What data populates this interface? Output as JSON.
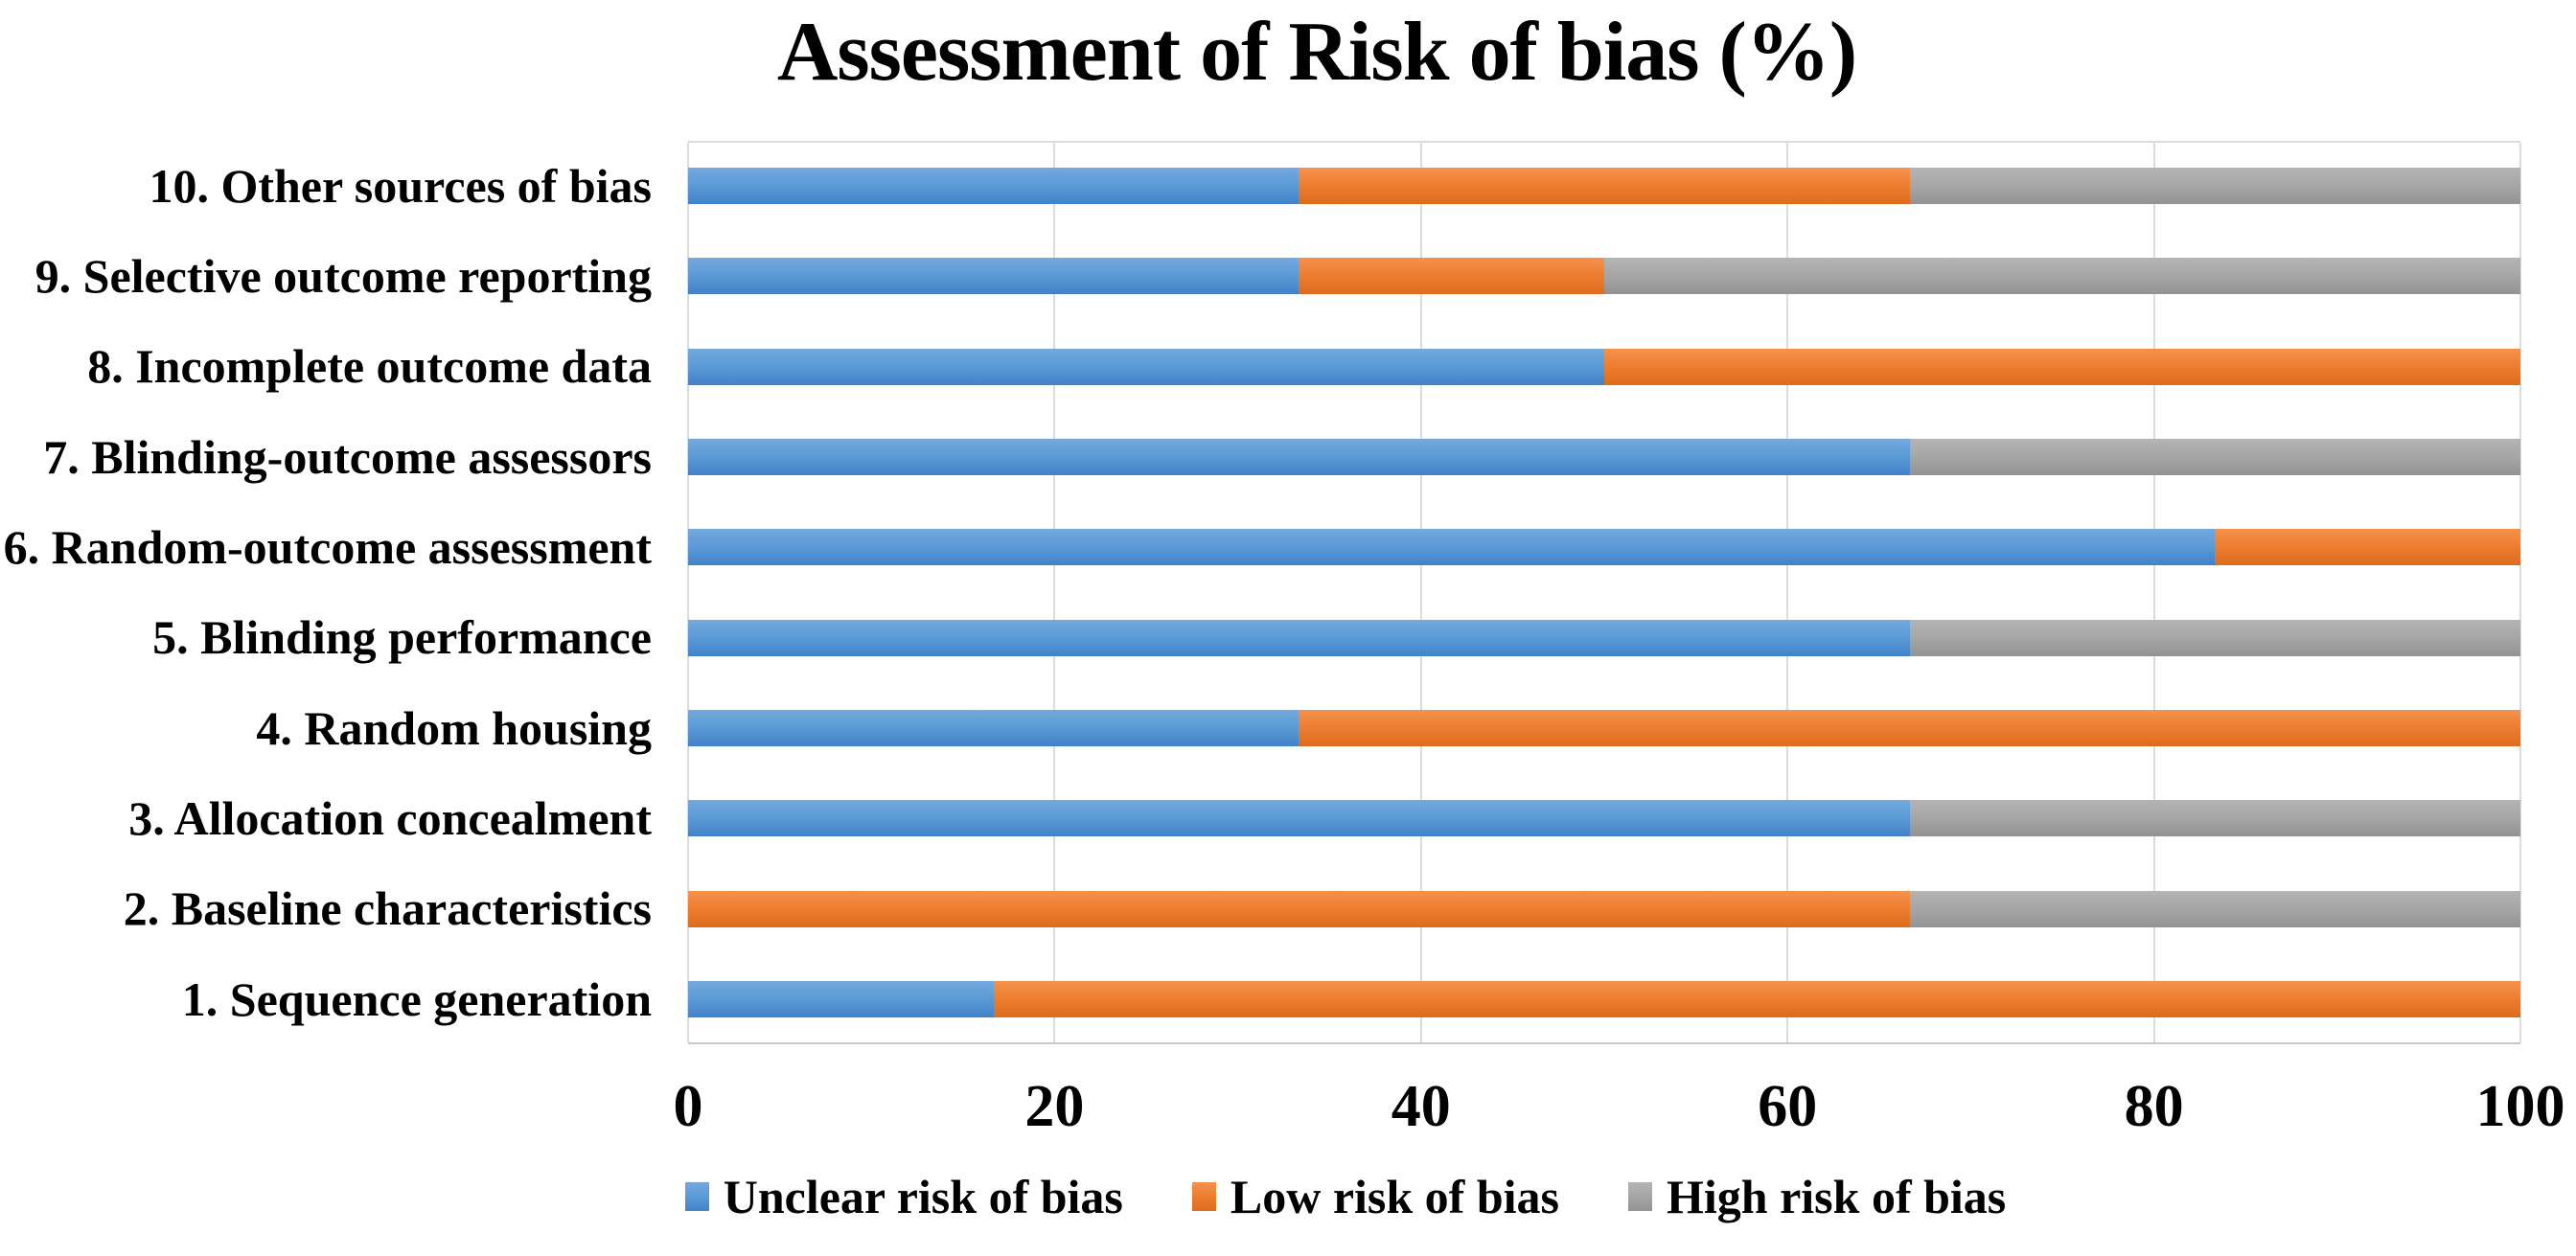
{
  "chart_data": {
    "type": "bar",
    "orientation": "horizontal",
    "stacked": true,
    "title": "Assessment of Risk of bias (%)",
    "x_axis": {
      "range": [
        0,
        100
      ],
      "ticks": [
        "0",
        "20",
        "40",
        "60",
        "80",
        "100"
      ],
      "grid": true
    },
    "legend_position": "bottom",
    "series_meta": [
      {
        "key": "unclear",
        "name": "Unclear risk of bias",
        "color": "#5B9BD5"
      },
      {
        "key": "low",
        "name": "Low risk of bias",
        "color": "#ED7D31"
      },
      {
        "key": "high",
        "name": "High risk of bias",
        "color": "#A5A5A5"
      }
    ],
    "rows": [
      {
        "label": "10. Other sources of bias",
        "values": {
          "unclear": 33.3,
          "low": 33.3,
          "high": 33.3
        }
      },
      {
        "label": "9. Selective outcome reporting",
        "values": {
          "unclear": 33.3,
          "low": 16.7,
          "high": 50
        }
      },
      {
        "label": "8. Incomplete outcome data",
        "values": {
          "unclear": 50,
          "low": 50,
          "high": 0
        }
      },
      {
        "label": "7. Blinding-outcome assessors",
        "values": {
          "unclear": 66.7,
          "low": 0,
          "high": 33.3
        }
      },
      {
        "label": "6. Random-outcome assessment",
        "values": {
          "unclear": 83.3,
          "low": 16.7,
          "high": 0
        }
      },
      {
        "label": "5. Blinding performance",
        "values": {
          "unclear": 66.7,
          "low": 0,
          "high": 33.3
        }
      },
      {
        "label": "4. Random housing",
        "values": {
          "unclear": 33.3,
          "low": 66.7,
          "high": 0
        }
      },
      {
        "label": "3. Allocation concealment",
        "values": {
          "unclear": 66.7,
          "low": 0,
          "high": 33.3
        }
      },
      {
        "label": "2. Baseline characteristics",
        "values": {
          "unclear": 0,
          "low": 66.7,
          "high": 33.3
        }
      },
      {
        "label": "1. Sequence generation",
        "values": {
          "unclear": 16.7,
          "low": 83.3,
          "high": 0
        }
      }
    ]
  }
}
